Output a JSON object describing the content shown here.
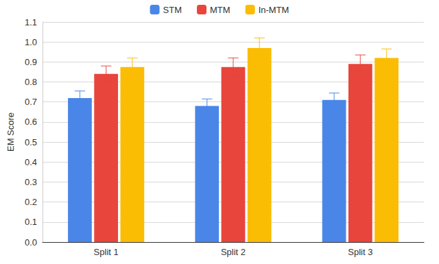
{
  "chart_data": {
    "type": "bar",
    "y_label": "EM Score",
    "categories": [
      "Split 1",
      "Split 2",
      "Split 3"
    ],
    "series": [
      {
        "name": "STM",
        "color": "#4a86e8",
        "values": [
          0.72,
          0.68,
          0.71
        ],
        "errors": [
          0.035,
          0.035,
          0.035
        ]
      },
      {
        "name": "MTM",
        "color": "#e8453c",
        "values": [
          0.84,
          0.875,
          0.89
        ],
        "errors": [
          0.04,
          0.045,
          0.045
        ]
      },
      {
        "name": "In-MTM",
        "color": "#fbbc04",
        "values": [
          0.875,
          0.97,
          0.92
        ],
        "errors": [
          0.045,
          0.05,
          0.045
        ]
      }
    ],
    "ylim": [
      0,
      1.1
    ],
    "yticks": [
      {
        "value": 0,
        "label": "0.0"
      },
      0.1,
      0.2,
      0.3,
      0.4,
      0.5,
      0.6,
      0.7,
      0.8,
      0.9,
      {
        "value": 1,
        "label": "1.0"
      },
      1.1
    ],
    "grid": true,
    "legend": "top"
  }
}
